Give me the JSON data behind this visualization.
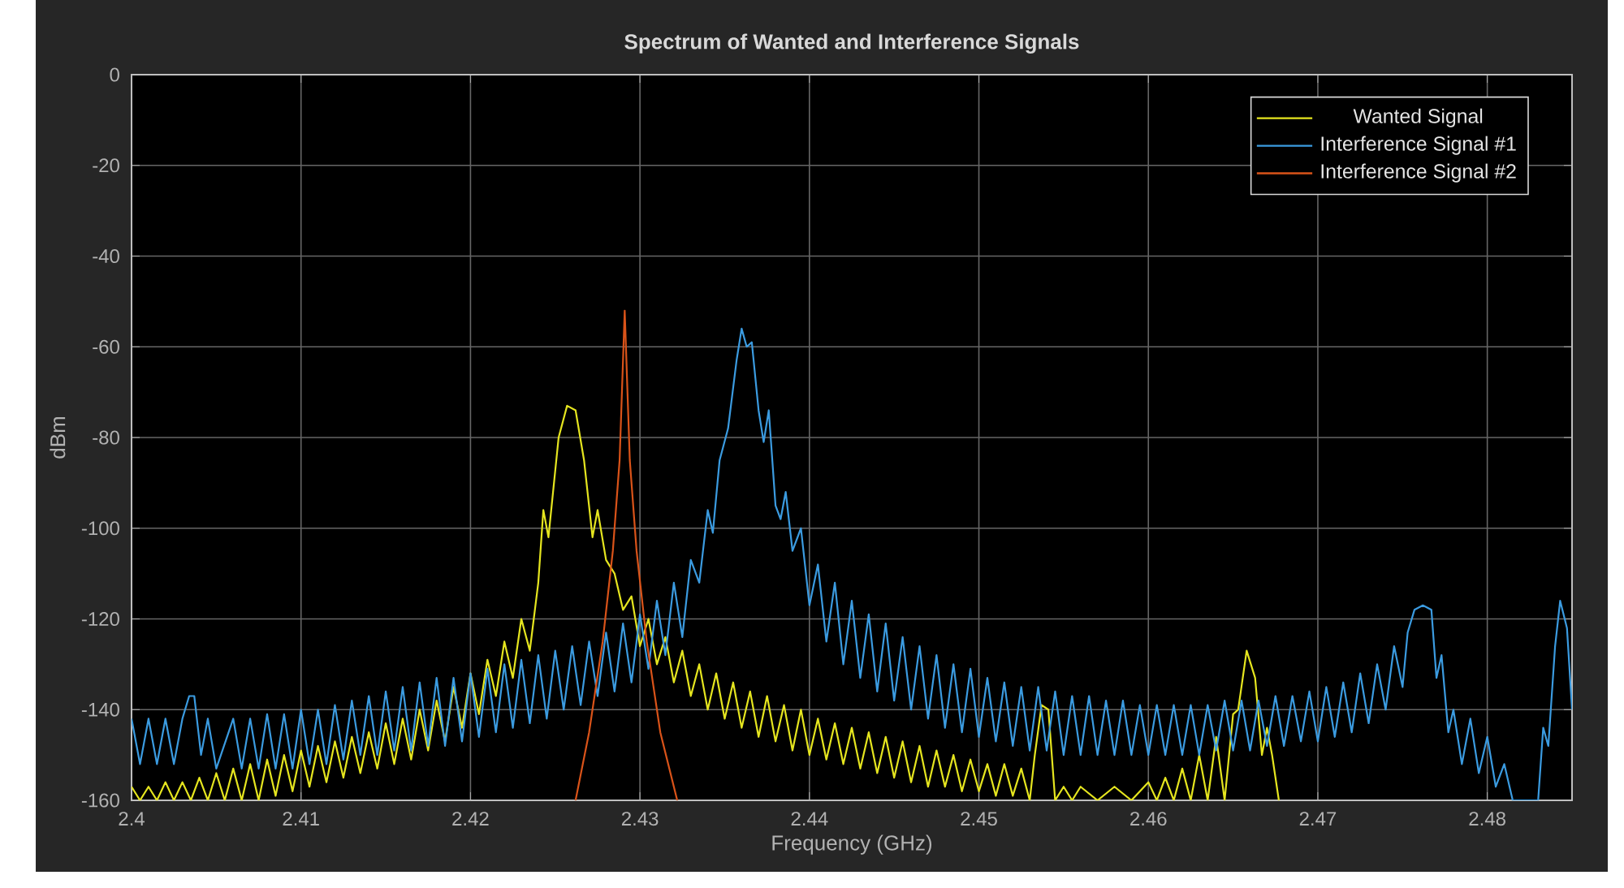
{
  "chart_data": {
    "type": "line",
    "title": "Spectrum of Wanted and Interference Signals",
    "xlabel": "Frequency (GHz)",
    "ylabel": "dBm",
    "xlim": [
      2.4,
      2.485
    ],
    "xticks": [
      2.4,
      2.41,
      2.42,
      2.43,
      2.44,
      2.45,
      2.46,
      2.47,
      2.48
    ],
    "ylim": [
      -160,
      0
    ],
    "yticks": [
      -160,
      -140,
      -120,
      -100,
      -80,
      -60,
      -40,
      -20,
      0
    ],
    "grid": true,
    "legend": "top right",
    "marker": "none",
    "line_style": "solid",
    "series": [
      {
        "name": "Wanted Signal",
        "color": "#e5e51f",
        "x": [
          2.4,
          2.4005,
          2.401,
          2.4015,
          2.402,
          2.4025,
          2.403,
          2.4035,
          2.404,
          2.4045,
          2.405,
          2.4055,
          2.406,
          2.4065,
          2.407,
          2.4075,
          2.408,
          2.4085,
          2.409,
          2.4095,
          2.41,
          2.4105,
          2.411,
          2.4115,
          2.412,
          2.4125,
          2.413,
          2.4135,
          2.414,
          2.4145,
          2.415,
          2.4155,
          2.416,
          2.4165,
          2.417,
          2.4175,
          2.418,
          2.4185,
          2.419,
          2.4195,
          2.42,
          2.4205,
          2.421,
          2.4215,
          2.422,
          2.4225,
          2.423,
          2.4235,
          2.424,
          2.4243,
          2.4246,
          2.4252,
          2.4257,
          2.4262,
          2.4267,
          2.4272,
          2.4275,
          2.428,
          2.4285,
          2.429,
          2.4295,
          2.43,
          2.4305,
          2.431,
          2.4315,
          2.432,
          2.4325,
          2.433,
          2.4335,
          2.434,
          2.4345,
          2.435,
          2.4355,
          2.436,
          2.4365,
          2.437,
          2.4375,
          2.438,
          2.4385,
          2.439,
          2.4395,
          2.44,
          2.4405,
          2.441,
          2.4415,
          2.442,
          2.4425,
          2.443,
          2.4435,
          2.444,
          2.4445,
          2.445,
          2.4455,
          2.446,
          2.4465,
          2.447,
          2.4475,
          2.448,
          2.4485,
          2.449,
          2.4495,
          2.45,
          2.4505,
          2.451,
          2.4515,
          2.452,
          2.4525,
          2.453,
          2.4533,
          2.4537,
          2.4541,
          2.4545,
          2.455,
          2.4555,
          2.456,
          2.457,
          2.458,
          2.459,
          2.46,
          2.4605,
          2.461,
          2.4615,
          2.462,
          2.4625,
          2.463,
          2.4635,
          2.464,
          2.4645,
          2.465,
          2.4653,
          2.4658,
          2.4663,
          2.4667,
          2.467,
          2.4673,
          2.4677
        ],
        "values": [
          -157,
          -160,
          -157,
          -160,
          -156,
          -160,
          -156,
          -160,
          -155,
          -160,
          -154,
          -160,
          -153,
          -160,
          -152,
          -160,
          -151,
          -159,
          -150,
          -158,
          -149,
          -157,
          -148,
          -156,
          -147,
          -155,
          -146,
          -154,
          -145,
          -153,
          -143,
          -152,
          -142,
          -151,
          -140,
          -149,
          -138,
          -147,
          -135,
          -144,
          -132,
          -141,
          -129,
          -137,
          -125,
          -133,
          -120,
          -127,
          -112,
          -96,
          -102,
          -80,
          -73,
          -74,
          -85,
          -102,
          -96,
          -107,
          -110,
          -118,
          -115,
          -126,
          -120,
          -130,
          -124,
          -134,
          -127,
          -137,
          -130,
          -140,
          -132,
          -142,
          -134,
          -144,
          -136,
          -146,
          -137,
          -147,
          -139,
          -149,
          -140,
          -150,
          -142,
          -151,
          -143,
          -152,
          -144,
          -153,
          -145,
          -154,
          -146,
          -155,
          -147,
          -156,
          -148,
          -157,
          -149,
          -157,
          -150,
          -158,
          -151,
          -158,
          -152,
          -159,
          -152,
          -159,
          -153,
          -160,
          -150,
          -139,
          -140,
          -160,
          -157,
          -160,
          -157,
          -160,
          -157,
          -160,
          -156,
          -160,
          -155,
          -160,
          -153,
          -160,
          -150,
          -160,
          -146,
          -160,
          -141,
          -140,
          -127,
          -133,
          -150,
          -144,
          -150,
          -160
        ]
      },
      {
        "name": "Interference Signal #1",
        "color": "#3b9be0",
        "x": [
          2.4,
          2.4005,
          2.401,
          2.4015,
          2.402,
          2.4025,
          2.403,
          2.4034,
          2.4037,
          2.4041,
          2.4045,
          2.405,
          2.406,
          2.4065,
          2.407,
          2.4075,
          2.408,
          2.4085,
          2.409,
          2.4095,
          2.41,
          2.4105,
          2.411,
          2.4115,
          2.412,
          2.4125,
          2.413,
          2.4135,
          2.414,
          2.4145,
          2.415,
          2.4155,
          2.416,
          2.4165,
          2.417,
          2.4175,
          2.418,
          2.4185,
          2.419,
          2.4195,
          2.42,
          2.4205,
          2.421,
          2.4215,
          2.422,
          2.4225,
          2.423,
          2.4235,
          2.424,
          2.4245,
          2.425,
          2.4255,
          2.426,
          2.4265,
          2.427,
          2.4275,
          2.428,
          2.4285,
          2.429,
          2.4295,
          2.43,
          2.4305,
          2.431,
          2.4315,
          2.432,
          2.4325,
          2.433,
          2.4335,
          2.434,
          2.4343,
          2.4347,
          2.4352,
          2.4357,
          2.436,
          2.4363,
          2.4366,
          2.437,
          2.4373,
          2.4376,
          2.438,
          2.4383,
          2.4386,
          2.439,
          2.4395,
          2.44,
          2.4405,
          2.441,
          2.4415,
          2.442,
          2.4425,
          2.443,
          2.4435,
          2.444,
          2.4445,
          2.445,
          2.4455,
          2.446,
          2.4465,
          2.447,
          2.4475,
          2.448,
          2.4485,
          2.449,
          2.4495,
          2.45,
          2.4505,
          2.451,
          2.4515,
          2.452,
          2.4525,
          2.453,
          2.4535,
          2.454,
          2.4545,
          2.455,
          2.4555,
          2.456,
          2.4565,
          2.457,
          2.4575,
          2.458,
          2.4585,
          2.459,
          2.4595,
          2.46,
          2.4605,
          2.461,
          2.4615,
          2.462,
          2.4625,
          2.463,
          2.4635,
          2.464,
          2.4645,
          2.465,
          2.4655,
          2.466,
          2.4665,
          2.467,
          2.4675,
          2.468,
          2.4685,
          2.469,
          2.4695,
          2.47,
          2.4705,
          2.471,
          2.4715,
          2.472,
          2.4725,
          2.473,
          2.4735,
          2.474,
          2.4745,
          2.475,
          2.4753,
          2.4757,
          2.4762,
          2.4767,
          2.477,
          2.4773,
          2.4777,
          2.478,
          2.4785,
          2.479,
          2.4795,
          2.48,
          2.4805,
          2.481,
          2.4815,
          2.483,
          2.4833,
          2.4836,
          2.484,
          2.4843,
          2.4847,
          2.485
        ],
        "values": [
          -142,
          -152,
          -142,
          -152,
          -142,
          -152,
          -142,
          -137,
          -137,
          -150,
          -142,
          -153,
          -142,
          -153,
          -142,
          -153,
          -141,
          -153,
          -141,
          -153,
          -140,
          -152,
          -140,
          -152,
          -139,
          -151,
          -138,
          -150,
          -137,
          -150,
          -136,
          -149,
          -135,
          -149,
          -134,
          -148,
          -133,
          -148,
          -133,
          -147,
          -132,
          -146,
          -131,
          -145,
          -130,
          -144,
          -129,
          -143,
          -128,
          -142,
          -127,
          -140,
          -126,
          -139,
          -125,
          -137,
          -123,
          -136,
          -121,
          -134,
          -119,
          -131,
          -116,
          -128,
          -112,
          -124,
          -107,
          -112,
          -96,
          -101,
          -85,
          -78,
          -63,
          -56,
          -60,
          -59,
          -74,
          -81,
          -74,
          -95,
          -98,
          -92,
          -105,
          -100,
          -117,
          -108,
          -125,
          -112,
          -130,
          -116,
          -133,
          -119,
          -136,
          -121,
          -138,
          -124,
          -140,
          -126,
          -142,
          -128,
          -144,
          -130,
          -145,
          -131,
          -146,
          -133,
          -147,
          -134,
          -148,
          -135,
          -149,
          -135,
          -149,
          -136,
          -150,
          -137,
          -150,
          -137,
          -150,
          -138,
          -150,
          -138,
          -150,
          -139,
          -150,
          -139,
          -150,
          -139,
          -150,
          -139,
          -150,
          -139,
          -149,
          -138,
          -149,
          -138,
          -149,
          -138,
          -148,
          -137,
          -148,
          -137,
          -147,
          -136,
          -147,
          -135,
          -146,
          -134,
          -145,
          -132,
          -143,
          -130,
          -140,
          -126,
          -135,
          -123,
          -118,
          -117,
          -118,
          -133,
          -128,
          -145,
          -140,
          -152,
          -142,
          -154,
          -146,
          -157,
          -152,
          -160,
          -160,
          -144,
          -148,
          -126,
          -116,
          -122,
          -140
        ]
      },
      {
        "name": "Interference Signal #2",
        "color": "#d95319",
        "x": [
          2.4262,
          2.427,
          2.4278,
          2.4284,
          2.4288,
          2.4291,
          2.4294,
          2.4298,
          2.4304,
          2.4312,
          2.4322
        ],
        "values": [
          -160,
          -145,
          -125,
          -105,
          -85,
          -52,
          -85,
          -105,
          -125,
          -145,
          -160
        ]
      }
    ]
  }
}
